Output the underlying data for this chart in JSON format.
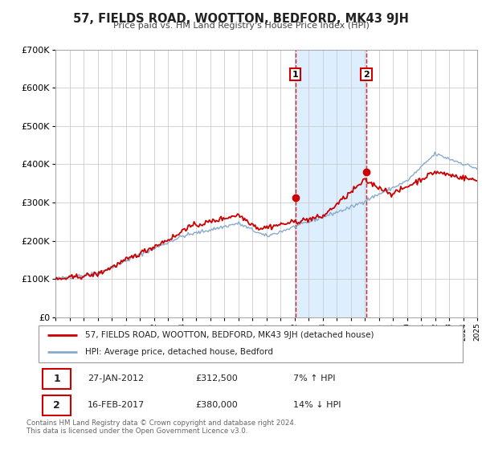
{
  "title": "57, FIELDS ROAD, WOOTTON, BEDFORD, MK43 9JH",
  "subtitle": "Price paid vs. HM Land Registry's House Price Index (HPI)",
  "background_color": "#ffffff",
  "plot_background": "#ffffff",
  "grid_color": "#cccccc",
  "sale1_date": 2012.07,
  "sale1_price": 312500,
  "sale1_label": "1",
  "sale2_date": 2017.12,
  "sale2_price": 380000,
  "sale2_label": "2",
  "legend_entry1": "57, FIELDS ROAD, WOOTTON, BEDFORD, MK43 9JH (detached house)",
  "legend_entry2": "HPI: Average price, detached house, Bedford",
  "table_row1": [
    "1",
    "27-JAN-2012",
    "£312,500",
    "7% ↑ HPI"
  ],
  "table_row2": [
    "2",
    "16-FEB-2017",
    "£380,000",
    "14% ↓ HPI"
  ],
  "footnote1": "Contains HM Land Registry data © Crown copyright and database right 2024.",
  "footnote2": "This data is licensed under the Open Government Licence v3.0.",
  "xmin": 1995,
  "xmax": 2025,
  "ymin": 0,
  "ymax": 700000,
  "house_color": "#cc0000",
  "hpi_color": "#88aacc",
  "shade_color": "#ddeeff",
  "yticks": [
    0,
    100000,
    200000,
    300000,
    400000,
    500000,
    600000,
    700000
  ],
  "ytick_labels": [
    "£0",
    "£100K",
    "£200K",
    "£300K",
    "£400K",
    "£500K",
    "£600K",
    "£700K"
  ]
}
